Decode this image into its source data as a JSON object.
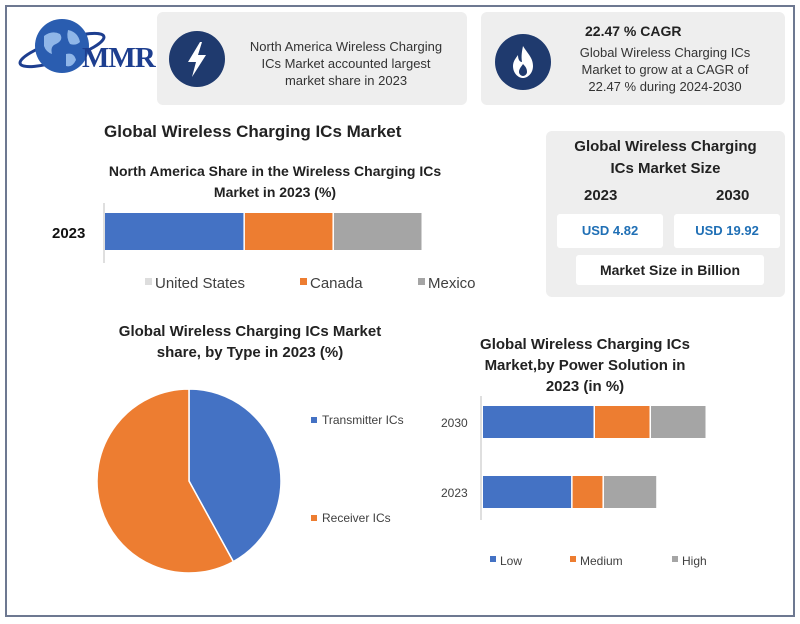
{
  "logo": {
    "text": "MMR"
  },
  "cards": [
    {
      "icon": "lightning-icon",
      "text_lines": [
        "North America Wireless Charging",
        "ICs Market accounted largest",
        "market share in 2023"
      ]
    },
    {
      "icon": "flame-icon",
      "heading": "22.47 % CAGR",
      "text_lines": [
        "Global Wireless Charging ICs",
        "Market to grow at a CAGR of",
        "22.47 % during 2024-2030"
      ]
    }
  ],
  "main_title": "Global Wireless Charging ICs Market",
  "market_size": {
    "title_lines": [
      "Global Wireless Charging",
      "ICs Market Size"
    ],
    "years": [
      "2023",
      "2030"
    ],
    "values": [
      "USD 4.82",
      "USD 19.92"
    ],
    "unit": "Market Size in Billion"
  },
  "colors": {
    "blue": "#4472c4",
    "orange": "#ed7d31",
    "gray": "#a5a5a5",
    "navy": "#1f3a6e"
  },
  "chart_data": [
    {
      "type": "bar",
      "orientation": "horizontal",
      "stacked": true,
      "title_lines": [
        "North America Share in the Wireless Charging ICs",
        "Market in 2023 (%)"
      ],
      "categories": [
        "2023"
      ],
      "series": [
        {
          "name": "United States",
          "values": [
            44
          ]
        },
        {
          "name": "Canada",
          "values": [
            28
          ]
        },
        {
          "name": "Mexico",
          "values": [
            28
          ]
        }
      ],
      "legend_position": "bottom"
    },
    {
      "type": "pie",
      "title_lines": [
        "Global Wireless Charging ICs Market",
        "share, by Type in 2023  (%)"
      ],
      "labels": [
        "Transmitter ICs",
        "Receiver ICs"
      ],
      "values": [
        42,
        58
      ],
      "legend_position": "right"
    },
    {
      "type": "bar",
      "orientation": "horizontal",
      "stacked": true,
      "title_lines": [
        "Global Wireless Charging ICs",
        "Market,by Power Solution in",
        "2023 (in %)"
      ],
      "categories": [
        "2030",
        "2023"
      ],
      "series": [
        {
          "name": "Low",
          "values": [
            50,
            40
          ]
        },
        {
          "name": "Medium",
          "values": [
            25,
            14
          ]
        },
        {
          "name": "High",
          "values": [
            25,
            24
          ]
        }
      ],
      "legend_position": "bottom"
    }
  ]
}
